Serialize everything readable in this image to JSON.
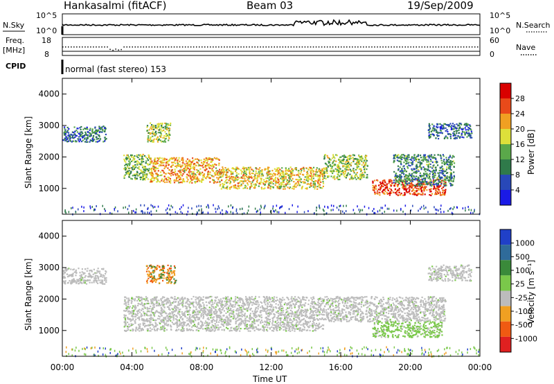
{
  "header": {
    "radar": "Hankasalmi (fitACF)",
    "beam": "Beam 03",
    "date": "19/Sep/2009"
  },
  "noise_panel": {
    "left_label": "N.Sky",
    "right_label": "N.Search",
    "left_ticks": [
      "10^5",
      "10^0"
    ],
    "right_ticks": [
      "10^5",
      "10^0"
    ]
  },
  "freq_panel": {
    "left_label_1": "Freq.",
    "left_label_2": "[MHz]",
    "right_label": "Nave",
    "left_ticks": [
      "18",
      "8"
    ],
    "right_ticks": [
      "60",
      "0"
    ]
  },
  "cpid": {
    "label": "CPID",
    "mode": "normal (fast stereo) 153"
  },
  "power_panel": {
    "ylabel": "Slant Range [km]",
    "yticks": [
      "4000",
      "3000",
      "2000",
      "1000"
    ],
    "colorbar_label": "Power [dB]",
    "colorbar_ticks": [
      "28",
      "24",
      "20",
      "16",
      "12",
      "8",
      "4"
    ],
    "colors": [
      "#1a1ae6",
      "#2848b8",
      "#2f7a4a",
      "#5aa84a",
      "#dde03a",
      "#f0a022",
      "#e84a1a",
      "#d90000"
    ]
  },
  "velocity_panel": {
    "ylabel": "Slant Range [km]",
    "yticks": [
      "4000",
      "3000",
      "2000",
      "1000"
    ],
    "colorbar_label": "Velocity [m s⁻¹]",
    "colorbar_ticks": [
      "1000",
      "500",
      "100",
      "25",
      "-25",
      "-100",
      "-500",
      "-1000"
    ],
    "colors": [
      "#2040c8",
      "#2f6b9a",
      "#3a8a3a",
      "#7ac84a",
      "#bcbcbc",
      "#f0a022",
      "#f05a12",
      "#e02020"
    ]
  },
  "xaxis": {
    "ticks": [
      "00:00",
      "04:00",
      "08:00",
      "12:00",
      "16:00",
      "20:00",
      "00:00"
    ],
    "label": "Time UT"
  },
  "chart_data": [
    {
      "type": "heatmap",
      "title": "Power [dB]",
      "ylabel": "Slant Range [km]",
      "xlabel": "Time UT",
      "xlim_hours": [
        0,
        24
      ],
      "ylim_km": [
        180,
        4500
      ],
      "colorbar_range_db": [
        0,
        32
      ],
      "bands": [
        {
          "t": [
            0.0,
            2.5
          ],
          "r": [
            2500,
            3000
          ],
          "db": 7
        },
        {
          "t": [
            3.5,
            5.0
          ],
          "r": [
            1300,
            2100
          ],
          "db": 14
        },
        {
          "t": [
            4.8,
            6.2
          ],
          "r": [
            2500,
            3100
          ],
          "db": 16
        },
        {
          "t": [
            5.0,
            9.0
          ],
          "r": [
            1200,
            2000
          ],
          "db": 22
        },
        {
          "t": [
            9.0,
            15.0
          ],
          "r": [
            1000,
            1700
          ],
          "db": 20
        },
        {
          "t": [
            15.0,
            17.5
          ],
          "r": [
            1300,
            2100
          ],
          "db": 16
        },
        {
          "t": [
            17.8,
            22.0
          ],
          "r": [
            800,
            1300
          ],
          "db": 28
        },
        {
          "t": [
            19.0,
            22.5
          ],
          "r": [
            1100,
            2100
          ],
          "db": 10
        },
        {
          "t": [
            21.0,
            23.5
          ],
          "r": [
            2600,
            3100
          ],
          "db": 7
        }
      ]
    },
    {
      "type": "heatmap",
      "title": "Velocity [m s⁻¹]",
      "ylabel": "Slant Range [km]",
      "xlabel": "Time UT",
      "xlim_hours": [
        0,
        24
      ],
      "ylim_km": [
        180,
        4500
      ],
      "colorbar_range_ms": [
        -1000,
        1000
      ],
      "bands": [
        {
          "t": [
            0.0,
            2.5
          ],
          "r": [
            2500,
            3000
          ],
          "v": 0
        },
        {
          "t": [
            3.5,
            15.0
          ],
          "r": [
            1000,
            2100
          ],
          "v": 0
        },
        {
          "t": [
            4.8,
            6.5
          ],
          "r": [
            2500,
            3100
          ],
          "v": -300
        },
        {
          "t": [
            15.0,
            22.0
          ],
          "r": [
            1300,
            2100
          ],
          "v": 0
        },
        {
          "t": [
            17.8,
            21.8
          ],
          "r": [
            800,
            1300
          ],
          "v": 100
        },
        {
          "t": [
            21.0,
            23.5
          ],
          "r": [
            2600,
            3100
          ],
          "v": 0
        }
      ]
    }
  ]
}
